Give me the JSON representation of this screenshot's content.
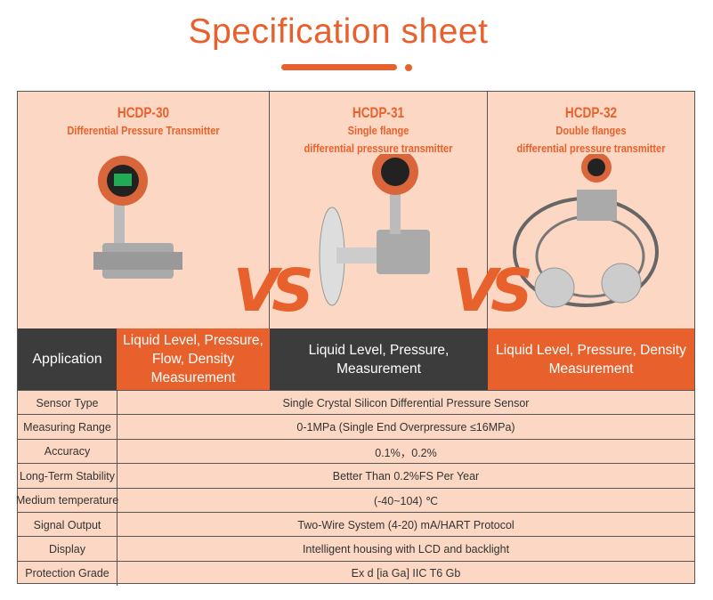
{
  "title": "Specification sheet",
  "accent": "#e8612c",
  "vs_label": "VS",
  "products": [
    {
      "model": "HCDP-30",
      "line1": "Differential Pressure Transmitter",
      "line2": "",
      "application": "Liquid Level, Pressure, Flow, Density Measurement",
      "app_color": "#e8612c"
    },
    {
      "model": "HCDP-31",
      "line1": "Single flange",
      "line2": "differential pressure transmitter",
      "application": "Liquid Level, Pressure,  Measurement",
      "app_color": "#3c3c3c"
    },
    {
      "model": "HCDP-32",
      "line1": "Double flanges",
      "line2": "differential pressure transmitter",
      "application": "Liquid Level, Pressure,  Density Measurement",
      "app_color": "#e8612c"
    }
  ],
  "application_label": "Application",
  "specs": [
    {
      "label": "Sensor Type",
      "value": "Single Crystal Silicon Differential Pressure Sensor"
    },
    {
      "label": "Measuring Range",
      "value": "0-1MPa (Single End Overpressure ≤16MPa)"
    },
    {
      "label": "Accuracy",
      "value": "0.1%，0.2%"
    },
    {
      "label": "Long-Term Stability",
      "value": "Better Than 0.2%FS Per Year"
    },
    {
      "label": "Medium temperature",
      "value": "(-40~104) ℃"
    },
    {
      "label": "Signal Output",
      "value": "Two-Wire System (4-20) mA/HART Protocol"
    },
    {
      "label": "Display",
      "value": "Intelligent housing with LCD and backlight"
    },
    {
      "label": "Protection Grade",
      "value": "Ex d [ia Ga] IIC T6 Gb"
    }
  ]
}
